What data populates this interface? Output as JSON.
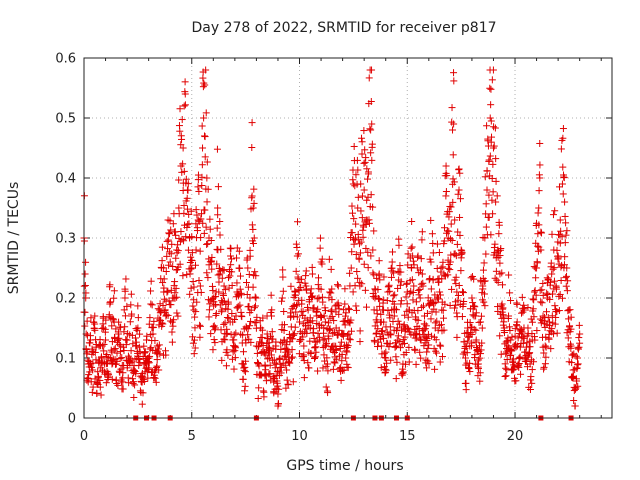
{
  "chart_data": {
    "type": "scatter",
    "title": "Day 278 of 2022, SRMTID for receiver p817",
    "xlabel": "GPS time / hours",
    "ylabel": "SRMTID / TECUs",
    "xlim": [
      0,
      24.5
    ],
    "ylim": [
      0,
      0.6
    ],
    "x_ticks": [
      0,
      5,
      10,
      15,
      20
    ],
    "x_tick_labels": [
      "0",
      "5",
      "10",
      "15",
      "20"
    ],
    "y_ticks": [
      0,
      0.1,
      0.2,
      0.3,
      0.4,
      0.5,
      0.6
    ],
    "y_tick_labels": [
      "0",
      "0.1",
      "0.2",
      "0.3",
      "0.4",
      "0.5",
      "0.6"
    ],
    "grid": true,
    "marker": "plus",
    "color": "#e00000",
    "zero_markers_x": [
      2.4,
      2.9,
      3.25,
      4.0,
      8.0,
      12.5,
      13.5,
      13.8,
      14.5,
      15.0,
      21.2,
      22.6
    ],
    "series": [
      {
        "name": "SRMTID",
        "points": [
          [
            0.0,
            0.3
          ],
          [
            0.02,
            0.295
          ],
          [
            0.05,
            0.24
          ],
          [
            0.08,
            0.2
          ],
          [
            0.1,
            0.14
          ],
          [
            0.15,
            0.11
          ],
          [
            0.2,
            0.09
          ],
          [
            0.3,
            0.13
          ],
          [
            0.4,
            0.08
          ],
          [
            0.5,
            0.17
          ],
          [
            0.6,
            0.06
          ],
          [
            0.7,
            0.12
          ],
          [
            0.8,
            0.1
          ],
          [
            0.9,
            0.15
          ],
          [
            1.0,
            0.13
          ],
          [
            1.1,
            0.07
          ],
          [
            1.2,
            0.19
          ],
          [
            1.3,
            0.11
          ],
          [
            1.4,
            0.16
          ],
          [
            1.5,
            0.09
          ],
          [
            1.6,
            0.14
          ],
          [
            1.7,
            0.12
          ],
          [
            1.8,
            0.06
          ],
          [
            1.9,
            0.2
          ],
          [
            2.0,
            0.13
          ],
          [
            2.1,
            0.1
          ],
          [
            2.2,
            0.17
          ],
          [
            2.3,
            0.08
          ],
          [
            2.4,
            0.12
          ],
          [
            2.5,
            0.15
          ],
          [
            2.6,
            0.11
          ],
          [
            2.7,
            0.06
          ],
          [
            2.8,
            0.09
          ],
          [
            2.9,
            0.13
          ],
          [
            3.0,
            0.1
          ],
          [
            3.1,
            0.19
          ],
          [
            3.2,
            0.14
          ],
          [
            3.3,
            0.08
          ],
          [
            3.4,
            0.12
          ],
          [
            3.5,
            0.18
          ],
          [
            3.6,
            0.25
          ],
          [
            3.7,
            0.21
          ],
          [
            3.8,
            0.17
          ],
          [
            3.9,
            0.33
          ],
          [
            4.0,
            0.26
          ],
          [
            4.1,
            0.2
          ],
          [
            4.2,
            0.31
          ],
          [
            4.3,
            0.28
          ],
          [
            4.4,
            0.35
          ],
          [
            4.5,
            0.42
          ],
          [
            4.6,
            0.45
          ],
          [
            4.65,
            0.52
          ],
          [
            4.7,
            0.54
          ],
          [
            4.8,
            0.38
          ],
          [
            4.9,
            0.3
          ],
          [
            5.0,
            0.25
          ],
          [
            5.1,
            0.18
          ],
          [
            5.2,
            0.28
          ],
          [
            5.3,
            0.33
          ],
          [
            5.4,
            0.22
          ],
          [
            5.5,
            0.45
          ],
          [
            5.55,
            0.5
          ],
          [
            5.6,
            0.555
          ],
          [
            5.7,
            0.4
          ],
          [
            5.8,
            0.3
          ],
          [
            5.9,
            0.26
          ],
          [
            6.0,
            0.2
          ],
          [
            6.1,
            0.15
          ],
          [
            6.2,
            0.35
          ],
          [
            6.3,
            0.24
          ],
          [
            6.4,
            0.18
          ],
          [
            6.5,
            0.22
          ],
          [
            6.6,
            0.14
          ],
          [
            6.7,
            0.19
          ],
          [
            6.8,
            0.27
          ],
          [
            6.9,
            0.16
          ],
          [
            7.0,
            0.12
          ],
          [
            7.1,
            0.21
          ],
          [
            7.2,
            0.25
          ],
          [
            7.3,
            0.17
          ],
          [
            7.4,
            0.09
          ],
          [
            7.5,
            0.13
          ],
          [
            7.6,
            0.25
          ],
          [
            7.7,
            0.2
          ],
          [
            7.8,
            0.37
          ],
          [
            7.85,
            0.35
          ],
          [
            7.9,
            0.3
          ],
          [
            8.0,
            0.12
          ],
          [
            8.1,
            0.09
          ],
          [
            8.2,
            0.15
          ],
          [
            8.3,
            0.11
          ],
          [
            8.4,
            0.07
          ],
          [
            8.5,
            0.14
          ],
          [
            8.6,
            0.1
          ],
          [
            8.7,
            0.17
          ],
          [
            8.8,
            0.06
          ],
          [
            8.9,
            0.12
          ],
          [
            9.0,
            0.04
          ],
          [
            9.1,
            0.09
          ],
          [
            9.2,
            0.2
          ],
          [
            9.3,
            0.13
          ],
          [
            9.4,
            0.08
          ],
          [
            9.5,
            0.11
          ],
          [
            9.6,
            0.17
          ],
          [
            9.7,
            0.14
          ],
          [
            9.8,
            0.21
          ],
          [
            9.9,
            0.27
          ],
          [
            10.0,
            0.16
          ],
          [
            10.1,
            0.19
          ],
          [
            10.2,
            0.12
          ],
          [
            10.3,
            0.22
          ],
          [
            10.4,
            0.18
          ],
          [
            10.5,
            0.15
          ],
          [
            10.6,
            0.24
          ],
          [
            10.7,
            0.1
          ],
          [
            10.8,
            0.17
          ],
          [
            10.9,
            0.2
          ],
          [
            11.0,
            0.26
          ],
          [
            11.1,
            0.13
          ],
          [
            11.2,
            0.16
          ],
          [
            11.3,
            0.09
          ],
          [
            11.4,
            0.21
          ],
          [
            11.5,
            0.18
          ],
          [
            11.6,
            0.12
          ],
          [
            11.7,
            0.15
          ],
          [
            11.8,
            0.22
          ],
          [
            11.9,
            0.08
          ],
          [
            12.0,
            0.14
          ],
          [
            12.1,
            0.19
          ],
          [
            12.2,
            0.11
          ],
          [
            12.3,
            0.16
          ],
          [
            12.4,
            0.25
          ],
          [
            12.5,
            0.39
          ],
          [
            12.6,
            0.3
          ],
          [
            12.7,
            0.35
          ],
          [
            12.8,
            0.22
          ],
          [
            12.9,
            0.44
          ],
          [
            13.0,
            0.38
          ],
          [
            13.1,
            0.33
          ],
          [
            13.2,
            0.41
          ],
          [
            13.3,
            0.48
          ],
          [
            13.35,
            0.49
          ],
          [
            13.4,
            0.28
          ],
          [
            13.5,
            0.2
          ],
          [
            13.6,
            0.16
          ],
          [
            13.7,
            0.24
          ],
          [
            13.8,
            0.12
          ],
          [
            13.9,
            0.18
          ],
          [
            14.0,
            0.1
          ],
          [
            14.1,
            0.21
          ],
          [
            14.2,
            0.14
          ],
          [
            14.3,
            0.26
          ],
          [
            14.4,
            0.17
          ],
          [
            14.5,
            0.12
          ],
          [
            14.6,
            0.23
          ],
          [
            14.7,
            0.19
          ],
          [
            14.8,
            0.09
          ],
          [
            14.9,
            0.15
          ],
          [
            15.0,
            0.21
          ],
          [
            15.1,
            0.18
          ],
          [
            15.2,
            0.25
          ],
          [
            15.3,
            0.22
          ],
          [
            15.4,
            0.14
          ],
          [
            15.5,
            0.27
          ],
          [
            15.6,
            0.2
          ],
          [
            15.7,
            0.24
          ],
          [
            15.8,
            0.17
          ],
          [
            15.9,
            0.11
          ],
          [
            16.0,
            0.19
          ],
          [
            16.1,
            0.26
          ],
          [
            16.2,
            0.23
          ],
          [
            16.3,
            0.15
          ],
          [
            16.4,
            0.29
          ],
          [
            16.5,
            0.21
          ],
          [
            16.6,
            0.18
          ],
          [
            16.7,
            0.24
          ],
          [
            16.8,
            0.42
          ],
          [
            16.9,
            0.3
          ],
          [
            17.0,
            0.26
          ],
          [
            17.1,
            0.48
          ],
          [
            17.15,
            0.49
          ],
          [
            17.2,
            0.33
          ],
          [
            17.3,
            0.21
          ],
          [
            17.4,
            0.38
          ],
          [
            17.5,
            0.28
          ],
          [
            17.6,
            0.19
          ],
          [
            17.7,
            0.1
          ],
          [
            17.8,
            0.15
          ],
          [
            17.9,
            0.12
          ],
          [
            18.0,
            0.2
          ],
          [
            18.1,
            0.17
          ],
          [
            18.2,
            0.13
          ],
          [
            18.3,
            0.09
          ],
          [
            18.4,
            0.16
          ],
          [
            18.5,
            0.22
          ],
          [
            18.6,
            0.3
          ],
          [
            18.7,
            0.38
          ],
          [
            18.8,
            0.43
          ],
          [
            18.85,
            0.5
          ],
          [
            18.9,
            0.495
          ],
          [
            19.0,
            0.45
          ],
          [
            19.1,
            0.36
          ],
          [
            19.2,
            0.28
          ],
          [
            19.3,
            0.24
          ],
          [
            19.4,
            0.19
          ],
          [
            19.5,
            0.15
          ],
          [
            19.6,
            0.11
          ],
          [
            19.7,
            0.17
          ],
          [
            19.8,
            0.13
          ],
          [
            19.9,
            0.08
          ],
          [
            20.0,
            0.12
          ],
          [
            20.1,
            0.16
          ],
          [
            20.2,
            0.1
          ],
          [
            20.3,
            0.14
          ],
          [
            20.4,
            0.18
          ],
          [
            20.5,
            0.11
          ],
          [
            20.6,
            0.15
          ],
          [
            20.7,
            0.09
          ],
          [
            20.8,
            0.13
          ],
          [
            20.9,
            0.21
          ],
          [
            21.0,
            0.25
          ],
          [
            21.1,
            0.35
          ],
          [
            21.15,
            0.4
          ],
          [
            21.2,
            0.28
          ],
          [
            21.3,
            0.17
          ],
          [
            21.4,
            0.12
          ],
          [
            21.5,
            0.2
          ],
          [
            21.6,
            0.16
          ],
          [
            21.7,
            0.24
          ],
          [
            21.8,
            0.28
          ],
          [
            21.9,
            0.22
          ],
          [
            22.0,
            0.27
          ],
          [
            22.1,
            0.33
          ],
          [
            22.2,
            0.39
          ],
          [
            22.25,
            0.405
          ],
          [
            22.3,
            0.36
          ],
          [
            22.4,
            0.25
          ],
          [
            22.5,
            0.18
          ],
          [
            22.6,
            0.12
          ],
          [
            22.7,
            0.08
          ],
          [
            22.8,
            0.05
          ],
          [
            22.9,
            0.1
          ],
          [
            23.0,
            0.14
          ]
        ]
      }
    ]
  }
}
